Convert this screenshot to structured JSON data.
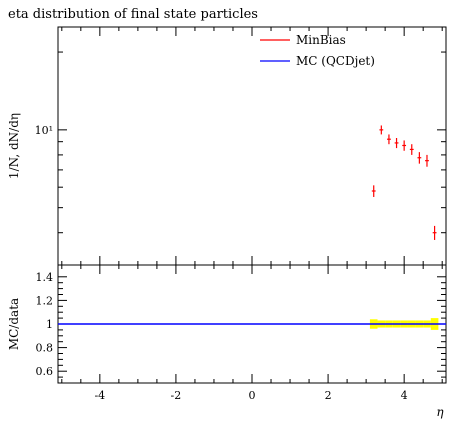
{
  "chart_data": {
    "title": "eta distribution of final state particles",
    "main": {
      "type": "scatter",
      "ylabel": "1/N, dN/dη",
      "yscale": "log",
      "ylim": [
        3.0,
        25.0
      ],
      "ytick_major": [
        10
      ],
      "ytick_major_labels": [
        "10¹"
      ],
      "ytick_minor": [
        4,
        5,
        6,
        7,
        8,
        9,
        20
      ],
      "series": [
        {
          "name": "MinBias",
          "color": "#ff0000",
          "x": [
            3.2,
            3.4,
            3.6,
            3.8,
            4.0,
            4.2,
            4.4,
            4.6,
            4.8
          ],
          "xerr": [
            0.05,
            0.05,
            0.05,
            0.05,
            0.05,
            0.05,
            0.05,
            0.05,
            0.05
          ],
          "y": [
            5.8,
            10.0,
            9.2,
            8.9,
            8.7,
            8.4,
            7.8,
            7.6,
            4.0
          ],
          "yerr": [
            0.3,
            0.4,
            0.4,
            0.4,
            0.4,
            0.4,
            0.4,
            0.4,
            0.25
          ]
        },
        {
          "name": "MC (QCDjet)",
          "color": "#0000ff",
          "x": [],
          "y": []
        }
      ]
    },
    "ratio": {
      "type": "line",
      "ylabel": "MC/data",
      "ylim": [
        0.5,
        1.5
      ],
      "yticks": [
        0.6,
        0.8,
        1,
        1.2,
        1.4
      ],
      "ytick_labels": [
        "0.6",
        "0.8",
        "1",
        "1.2",
        "1.4"
      ],
      "reference_line": 1,
      "band": {
        "color": "#ffff00",
        "x": [
          3.2,
          3.4,
          3.6,
          3.8,
          4.0,
          4.2,
          4.4,
          4.6,
          4.8
        ],
        "lower": [
          0.96,
          0.97,
          0.97,
          0.97,
          0.97,
          0.97,
          0.97,
          0.97,
          0.95
        ],
        "upper": [
          1.04,
          1.03,
          1.03,
          1.03,
          1.03,
          1.03,
          1.03,
          1.03,
          1.05
        ]
      },
      "xlabel": "η",
      "xlim": [
        -5.1,
        5.1
      ],
      "xticks": [
        -4,
        -2,
        0,
        2,
        4
      ],
      "xtick_labels": [
        "-4",
        "-2",
        "0",
        "2",
        "4"
      ]
    }
  }
}
